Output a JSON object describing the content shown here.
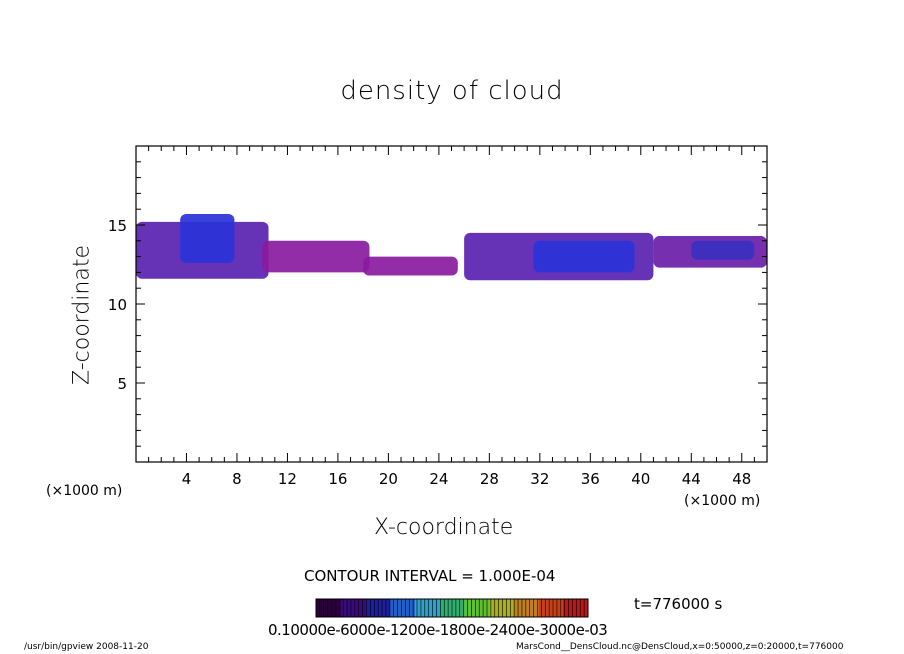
{
  "chart_data": {
    "type": "heatmap",
    "title": "density of cloud",
    "xlabel": "X-coordinate",
    "ylabel": "Z-coordinate",
    "x_unit": "(×1000 m)",
    "xlim": [
      0,
      50
    ],
    "ylim": [
      0,
      20
    ],
    "x_ticks": [
      "4",
      "8",
      "12",
      "16",
      "20",
      "24",
      "28",
      "32",
      "36",
      "40",
      "44",
      "48"
    ],
    "y_ticks": [
      "5",
      "10",
      "15"
    ],
    "contour_interval": "CONTOUR INTERVAL = 1.000E-04",
    "time": "t=776000 s",
    "colorbar_ticks_text": "0.10000e-6000e-1200e-1800e-2400e-3000e-03",
    "colorbar_colors": [
      "#2a003a",
      "#3a0a7a",
      "#1e1e9e",
      "#2060c8",
      "#30a0c8",
      "#30b070",
      "#60c030",
      "#a8b020",
      "#c08020",
      "#c84018",
      "#b81818"
    ],
    "cloud_field": [
      {
        "x": [
          0,
          10.5
        ],
        "z_bottom": 11.6,
        "z_top": 15.2,
        "level": 0.00045
      },
      {
        "x": [
          3.5,
          7.8
        ],
        "z_bottom": 12.6,
        "z_top": 15.7,
        "level": 0.0006
      },
      {
        "x": [
          10,
          18.5
        ],
        "z_bottom": 12.0,
        "z_top": 14.0,
        "level": 0.00015
      },
      {
        "x": [
          18,
          25.5
        ],
        "z_bottom": 11.8,
        "z_top": 13.0,
        "level": 0.0001
      },
      {
        "x": [
          26,
          41
        ],
        "z_bottom": 11.5,
        "z_top": 14.5,
        "level": 0.00045
      },
      {
        "x": [
          31.5,
          39.5
        ],
        "z_bottom": 12.0,
        "z_top": 14.0,
        "level": 0.0006
      },
      {
        "x": [
          41,
          50
        ],
        "z_bottom": 12.3,
        "z_top": 14.3,
        "level": 0.0003
      },
      {
        "x": [
          44,
          49
        ],
        "z_bottom": 12.8,
        "z_top": 14.0,
        "level": 0.0005
      }
    ]
  },
  "footer": {
    "left": "/usr/bin/gpview   2008-11-20",
    "right": "MarsCond__DensCloud.nc@DensCloud,x=0:50000,z=0:20000,t=776000"
  }
}
